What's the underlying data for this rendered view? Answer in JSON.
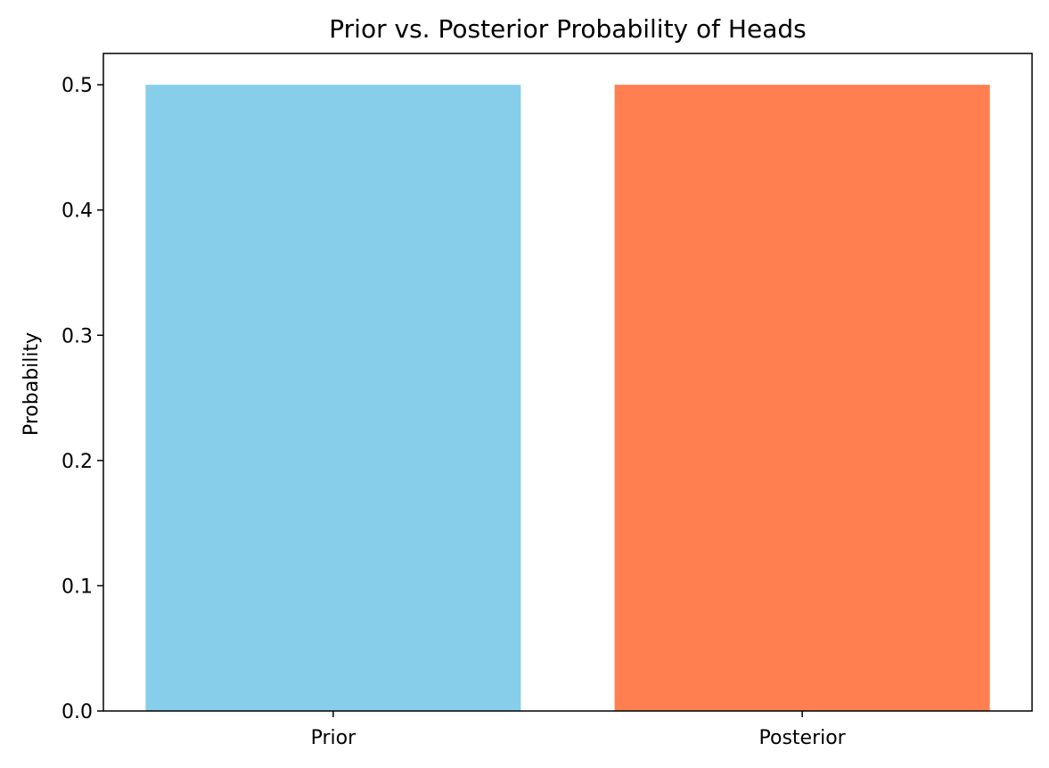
{
  "chart_data": {
    "type": "bar",
    "title": "Prior vs. Posterior Probability of Heads",
    "xlabel": "",
    "ylabel": "Probability",
    "categories": [
      "Prior",
      "Posterior"
    ],
    "values": [
      0.5,
      0.5
    ],
    "colors": [
      "#87ceeb",
      "#ff7f50"
    ],
    "ylim": [
      0,
      0.525
    ],
    "yticks": [
      0.0,
      0.1,
      0.2,
      0.3,
      0.4,
      0.5
    ],
    "ytick_labels": [
      "0.0",
      "0.1",
      "0.2",
      "0.3",
      "0.4",
      "0.5"
    ],
    "grid": false,
    "legend": "none"
  }
}
